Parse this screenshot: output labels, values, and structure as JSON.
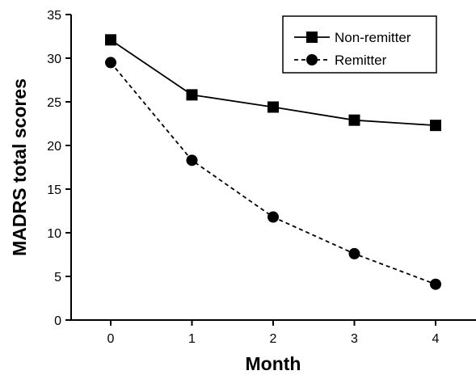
{
  "chart_data": {
    "type": "line",
    "title": "",
    "xlabel": "Month",
    "ylabel": "MADRS total scores",
    "x": [
      0,
      1,
      2,
      3,
      4
    ],
    "x_ticks": [
      "0",
      "1",
      "2",
      "3",
      "4"
    ],
    "y_ticks": [
      "0",
      "5",
      "10",
      "15",
      "20",
      "25",
      "30",
      "35"
    ],
    "ylim": [
      0,
      35
    ],
    "grid": false,
    "legend_position": "top-right",
    "series": [
      {
        "name": "Non-remitter",
        "values": [
          32.1,
          25.8,
          24.4,
          22.9,
          22.3
        ],
        "marker": "square",
        "line": "solid",
        "color": "#000000"
      },
      {
        "name": "Remitter",
        "values": [
          29.5,
          18.3,
          11.8,
          7.6,
          4.1
        ],
        "marker": "circle",
        "line": "dashed",
        "color": "#000000"
      }
    ]
  }
}
